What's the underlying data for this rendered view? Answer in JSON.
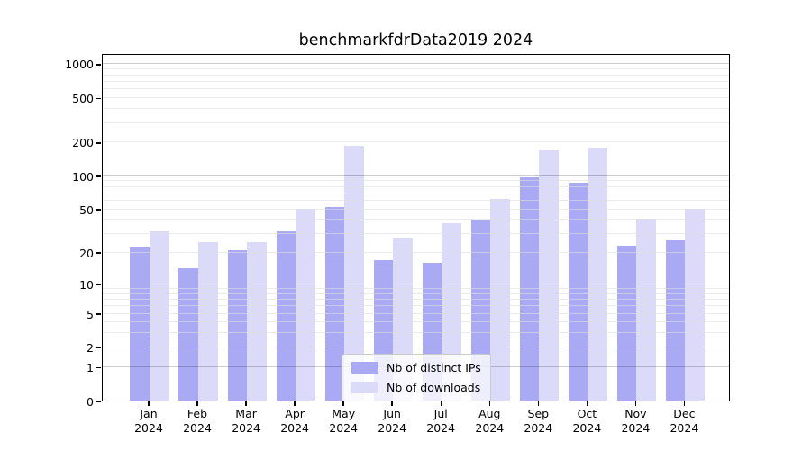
{
  "figure": {
    "title": "benchmarkfdrData2019 2024"
  },
  "colors": {
    "bar_distinct_ips": "#a9a9f4",
    "bar_downloads": "#dbdbf9",
    "grid_major": "rgba(0,0,0,0.20)",
    "grid_minor": "rgba(221,221,221,0.60)",
    "spine": "#000000",
    "text": "#000000",
    "legend_border": "#cbcbcb",
    "legend_bg": "rgba(255,255,255,0.8)"
  },
  "axes": {
    "ytick_values": [
      0,
      1,
      2,
      5,
      10,
      20,
      50,
      100,
      200,
      500,
      1000
    ],
    "ytick_labels": [
      "0",
      "1",
      "2",
      "5",
      "10",
      "20",
      "50",
      "100",
      "200",
      "500",
      "1000"
    ],
    "grid_major_values": [
      1,
      10,
      100,
      1000
    ],
    "grid_minor_values": [
      2,
      3,
      4,
      5,
      6,
      7,
      8,
      9,
      20,
      30,
      40,
      50,
      60,
      70,
      80,
      90,
      200,
      300,
      400,
      500,
      600,
      700,
      800,
      900
    ],
    "ymax": 1247
  },
  "chart_data": {
    "type": "bar",
    "title": "benchmarkfdrData2019 2024",
    "categories": [
      "Jan",
      "Feb",
      "Mar",
      "Apr",
      "May",
      "Jun",
      "Jul",
      "Aug",
      "Sep",
      "Oct",
      "Nov",
      "Dec"
    ],
    "year_label": "2024",
    "series": [
      {
        "name": "Nb of distinct IPs",
        "values": [
          22,
          14,
          21,
          31,
          52,
          17,
          16,
          40,
          96,
          86,
          23,
          26
        ]
      },
      {
        "name": "Nb of downloads",
        "values": [
          31,
          25,
          25,
          50,
          184,
          27,
          37,
          62,
          170,
          180,
          41,
          50
        ]
      }
    ],
    "yscale": "log(1+x)",
    "ylim": [
      0,
      1247
    ],
    "yticks": [
      0,
      1,
      2,
      5,
      10,
      20,
      50,
      100,
      200,
      500,
      1000
    ],
    "xlabel": "",
    "ylabel": "",
    "grid": "on",
    "legend_position": "lower center"
  }
}
